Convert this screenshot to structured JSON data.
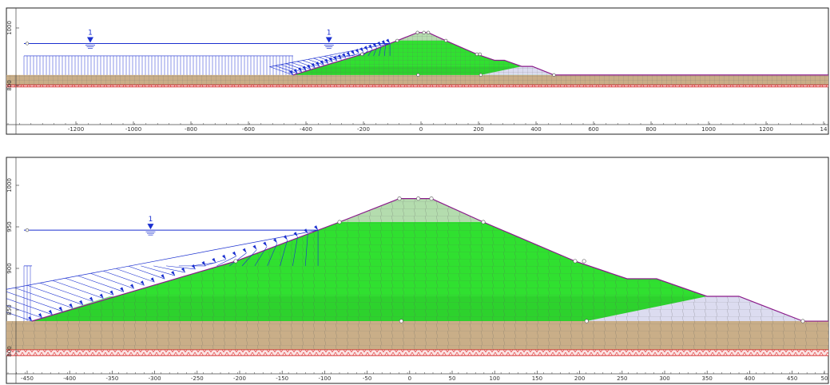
{
  "panels": [
    {
      "x_tick_labels": [
        "-1200",
        "-1000",
        "-800",
        "-600",
        "-400",
        "-200",
        "0",
        "200",
        "400",
        "600",
        "800",
        "1000",
        "1200",
        "14"
      ],
      "y_tick_labels": [
        "1000",
        "800"
      ],
      "water_labels": [
        "1",
        "1"
      ]
    },
    {
      "x_tick_labels": [
        "-450",
        "-400",
        "-350",
        "-300",
        "-250",
        "-200",
        "-150",
        "-100",
        "-50",
        "0",
        "50",
        "100",
        "150",
        "200",
        "250",
        "300",
        "350",
        "400",
        "450",
        "50"
      ],
      "y_tick_labels": [
        "1000",
        "950",
        "900",
        "850",
        "800"
      ],
      "water_labels": [
        "1"
      ]
    }
  ]
}
